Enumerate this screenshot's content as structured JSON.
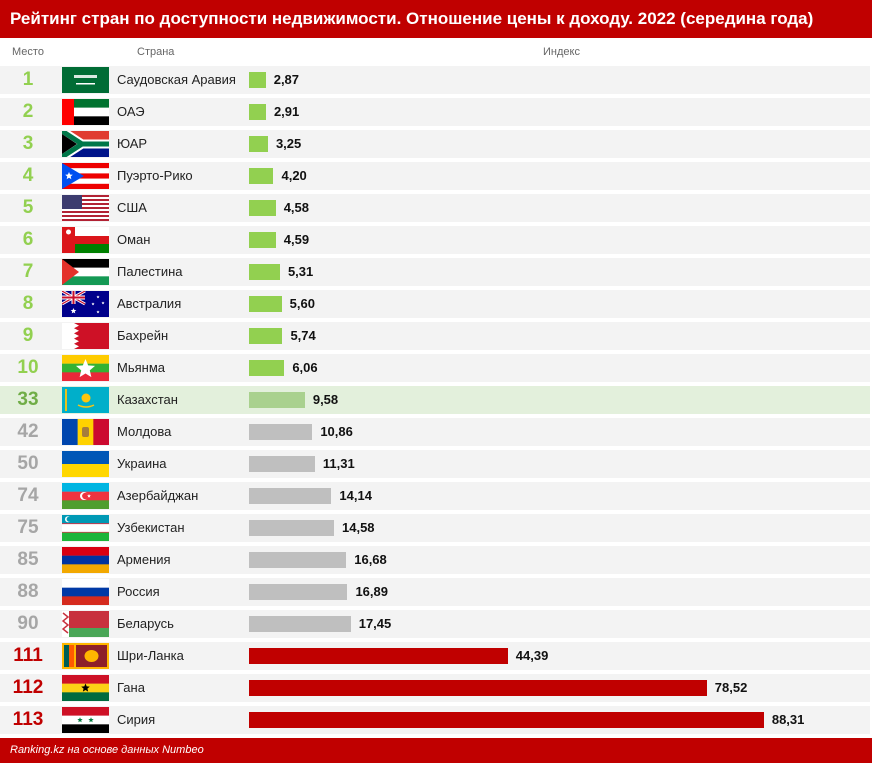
{
  "header": {
    "title": "Рейтинг стран по доступности недвижимости. Отношение цены к доходу. 2022 (середина года)"
  },
  "columns": {
    "place": "Место",
    "country": "Страна",
    "index": "Индекс"
  },
  "footer": {
    "source": "Ranking.kz на основе данных Numbeo"
  },
  "colors": {
    "green": "#92d050",
    "highlight": "#a9d18e",
    "gray": "#bfbfbf",
    "red": "#c00000",
    "rank_green": "#92d050",
    "rank_gray": "#a6a6a6",
    "rank_red": "#c00000",
    "rank_highlight": "#70ad47"
  },
  "chart_data": {
    "type": "bar",
    "title": "Рейтинг стран по доступности недвижимости. Отношение цены к доходу. 2022 (середина года)",
    "xlabel": "",
    "ylabel": "Индекс",
    "rows": [
      {
        "rank": "1",
        "country": "Саудовская Аравия",
        "value": 2.87,
        "label": "2,87",
        "group": "green",
        "flag": "saudi-arabia-flag"
      },
      {
        "rank": "2",
        "country": "ОАЭ",
        "value": 2.91,
        "label": "2,91",
        "group": "green",
        "flag": "uae-flag"
      },
      {
        "rank": "3",
        "country": "ЮАР",
        "value": 3.25,
        "label": "3,25",
        "group": "green",
        "flag": "south-africa-flag"
      },
      {
        "rank": "4",
        "country": "Пуэрто-Рико",
        "value": 4.2,
        "label": "4,20",
        "group": "green",
        "flag": "puerto-rico-flag"
      },
      {
        "rank": "5",
        "country": "США",
        "value": 4.58,
        "label": "4,58",
        "group": "green",
        "flag": "usa-flag"
      },
      {
        "rank": "6",
        "country": "Оман",
        "value": 4.59,
        "label": "4,59",
        "group": "green",
        "flag": "oman-flag"
      },
      {
        "rank": "7",
        "country": "Палестина",
        "value": 5.31,
        "label": "5,31",
        "group": "green",
        "flag": "palestine-flag"
      },
      {
        "rank": "8",
        "country": "Австралия",
        "value": 5.6,
        "label": "5,60",
        "group": "green",
        "flag": "australia-flag"
      },
      {
        "rank": "9",
        "country": "Бахрейн",
        "value": 5.74,
        "label": "5,74",
        "group": "green",
        "flag": "bahrain-flag"
      },
      {
        "rank": "10",
        "country": "Мьянма",
        "value": 6.06,
        "label": "6,06",
        "group": "green",
        "flag": "myanmar-flag"
      },
      {
        "rank": "33",
        "country": "Казахстан",
        "value": 9.58,
        "label": "9,58",
        "group": "highlight",
        "flag": "kazakhstan-flag"
      },
      {
        "rank": "42",
        "country": "Молдова",
        "value": 10.86,
        "label": "10,86",
        "group": "gray",
        "flag": "moldova-flag"
      },
      {
        "rank": "50",
        "country": "Украина",
        "value": 11.31,
        "label": "11,31",
        "group": "gray",
        "flag": "ukraine-flag"
      },
      {
        "rank": "74",
        "country": "Азербайджан",
        "value": 14.14,
        "label": "14,14",
        "group": "gray",
        "flag": "azerbaijan-flag"
      },
      {
        "rank": "75",
        "country": "Узбекистан",
        "value": 14.58,
        "label": "14,58",
        "group": "gray",
        "flag": "uzbekistan-flag"
      },
      {
        "rank": "85",
        "country": "Армения",
        "value": 16.68,
        "label": "16,68",
        "group": "gray",
        "flag": "armenia-flag"
      },
      {
        "rank": "88",
        "country": "Россия",
        "value": 16.89,
        "label": "16,89",
        "group": "gray",
        "flag": "russia-flag"
      },
      {
        "rank": "90",
        "country": "Беларусь",
        "value": 17.45,
        "label": "17,45",
        "group": "gray",
        "flag": "belarus-flag"
      },
      {
        "rank": "111",
        "country": "Шри-Ланка",
        "value": 44.39,
        "label": "44,39",
        "group": "red",
        "flag": "sri-lanka-flag"
      },
      {
        "rank": "112",
        "country": "Гана",
        "value": 78.52,
        "label": "78,52",
        "group": "red",
        "flag": "ghana-flag"
      },
      {
        "rank": "113",
        "country": "Сирия",
        "value": 88.31,
        "label": "88,31",
        "group": "red",
        "flag": "syria-flag"
      }
    ]
  }
}
